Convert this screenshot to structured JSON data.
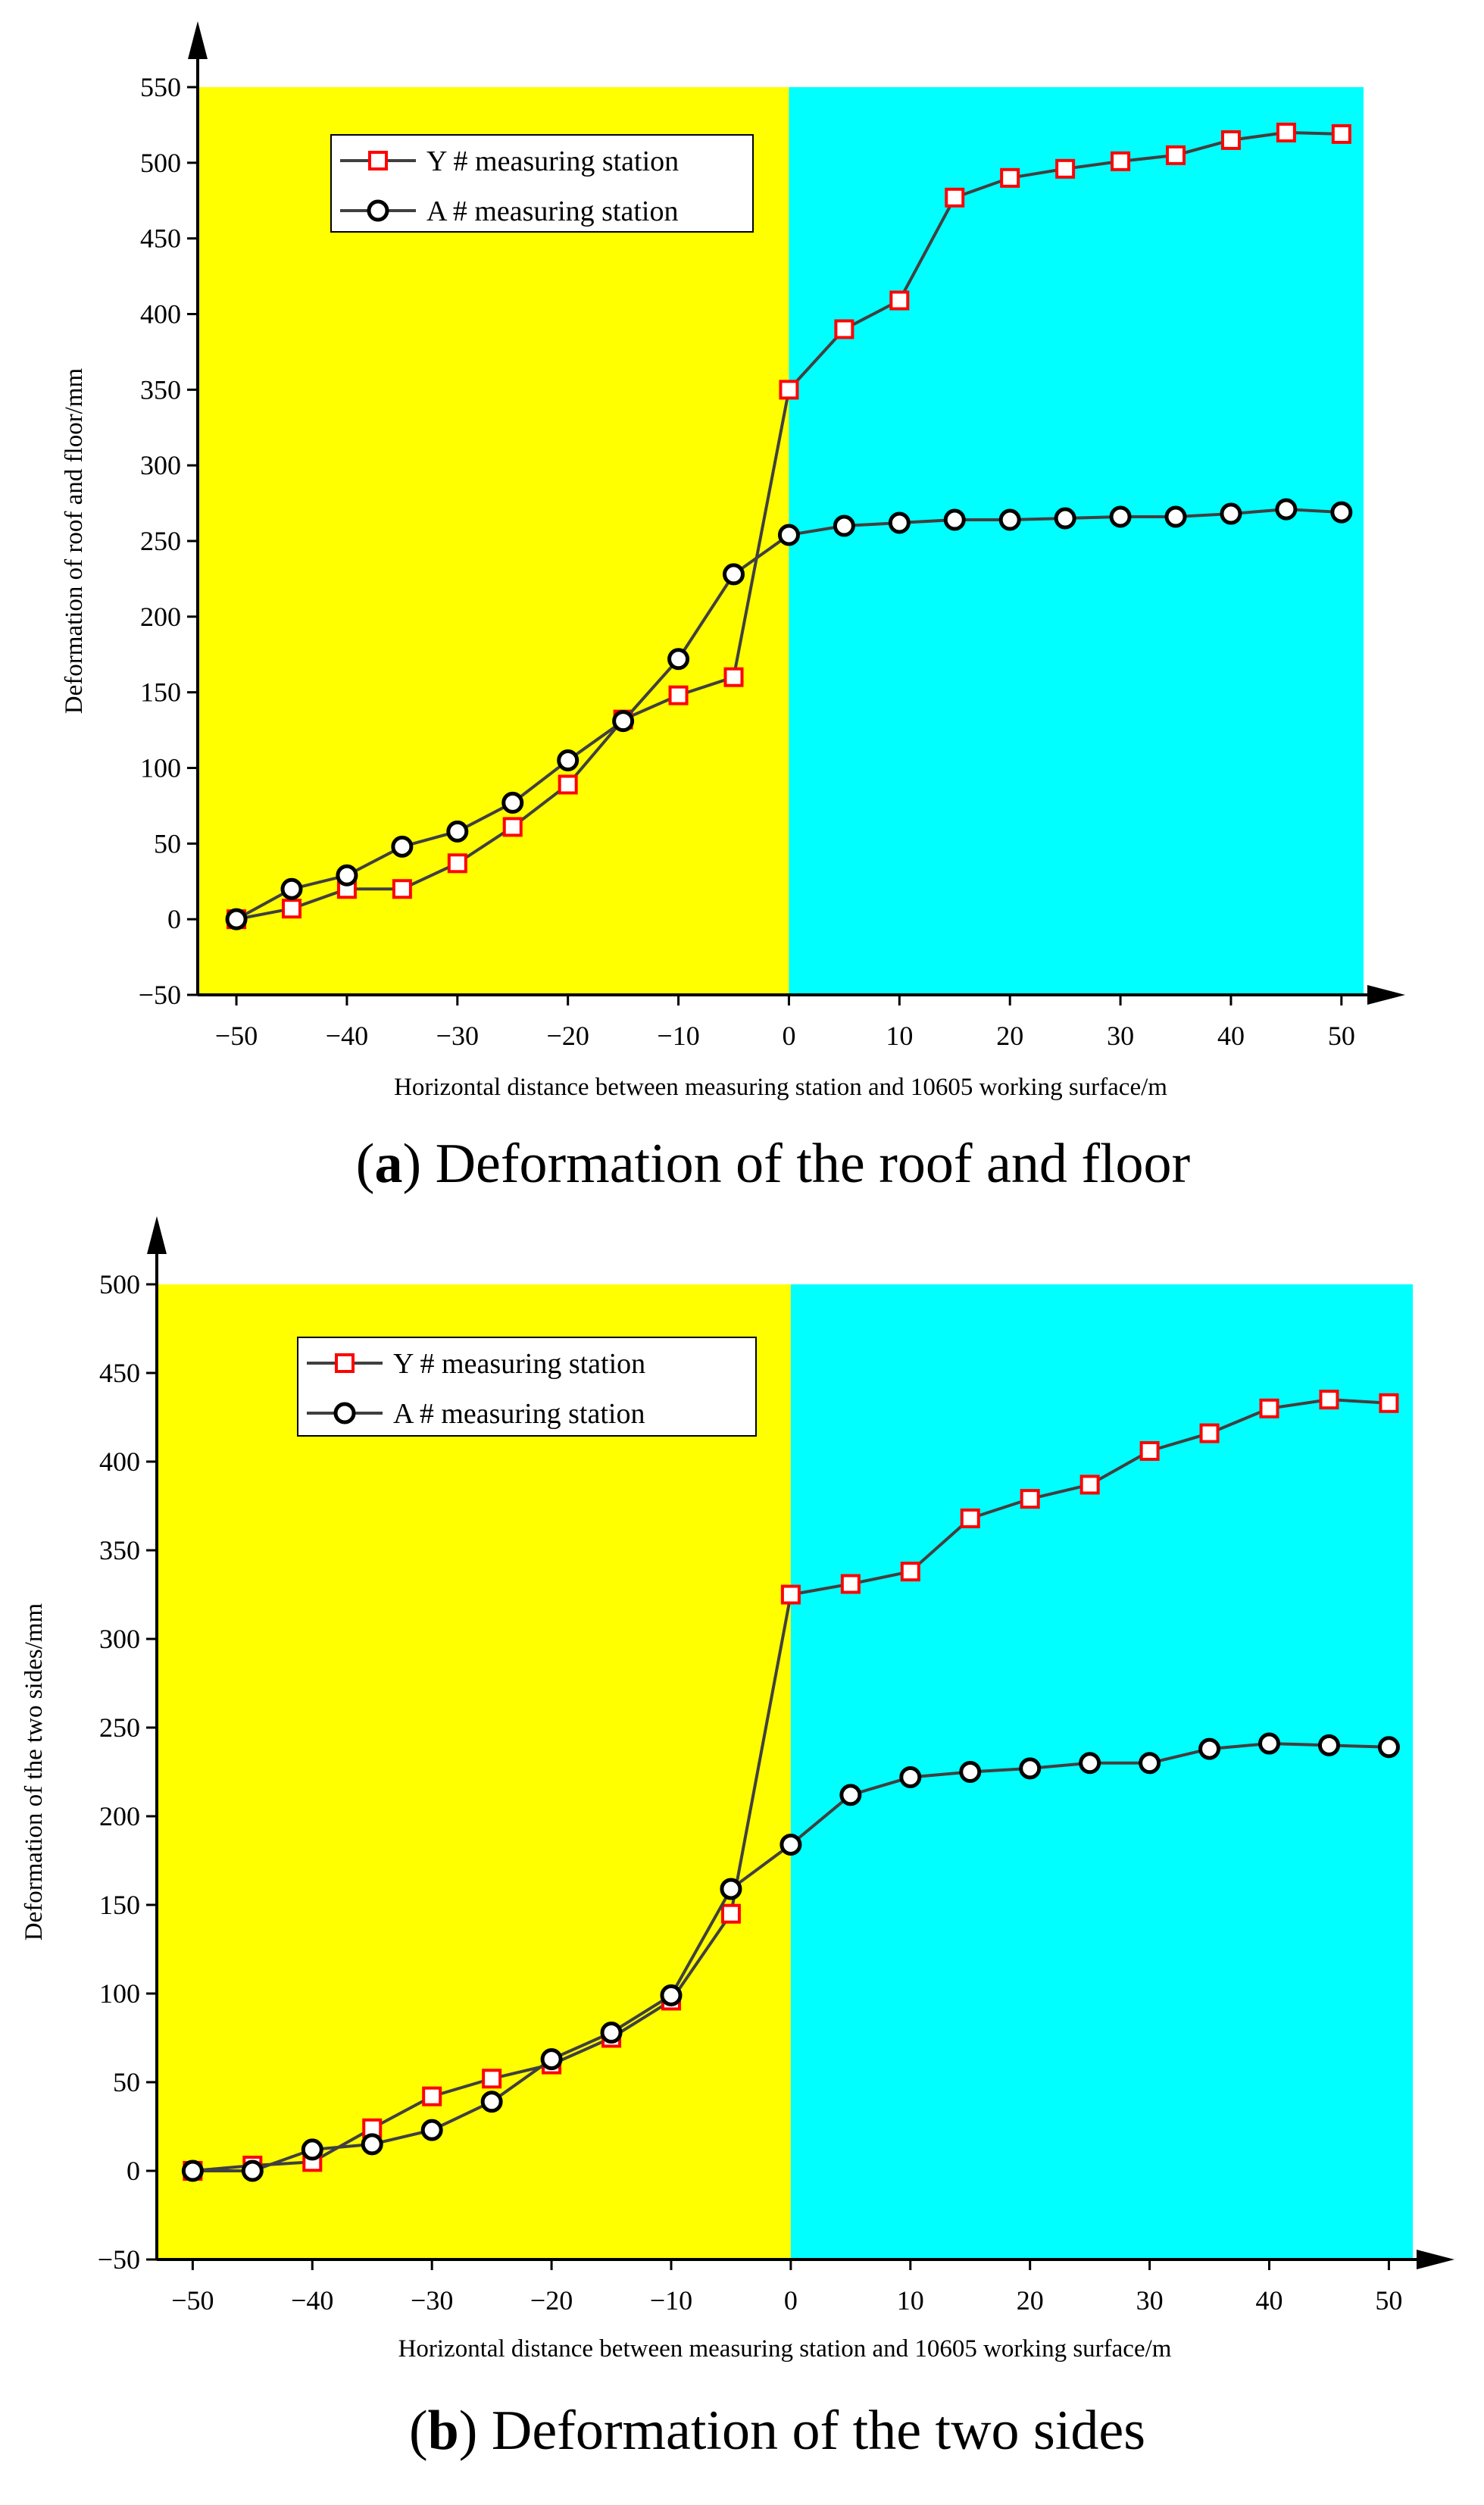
{
  "chart_data": [
    {
      "type": "line",
      "caption_label": "a",
      "caption_text": ") Deformation of the roof and floor",
      "xlabel": "Horizontal distance between measuring station and 10605 working surface/m",
      "ylabel": "Deformation of roof and floor/mm",
      "xlim": [
        -53.5,
        52
      ],
      "ylim": [
        -50,
        550
      ],
      "xticks": [
        -50,
        -40,
        -30,
        -20,
        -10,
        0,
        10,
        20,
        30,
        40,
        50
      ],
      "xtick_labels": [
        "−50",
        "−40",
        "−30",
        "−20",
        "−10",
        "0",
        "10",
        "20",
        "30",
        "40",
        "50"
      ],
      "yticks": [
        -50,
        0,
        50,
        100,
        150,
        200,
        250,
        300,
        350,
        400,
        450,
        500,
        550
      ],
      "ytick_labels": [
        "−50",
        "0",
        "50",
        "100",
        "150",
        "200",
        "250",
        "300",
        "350",
        "400",
        "450",
        "500",
        "550"
      ],
      "regions": [
        {
          "from": -53.5,
          "to": 0,
          "color": "#ffff00"
        },
        {
          "from": 0,
          "to": 52,
          "color": "#00ffff"
        }
      ],
      "legend_position": "top-left",
      "series": [
        {
          "name": "Y # measuring station",
          "marker": "square",
          "marker_color": "#ff0000",
          "x": [
            -50,
            -45,
            -40,
            -35,
            -30,
            -25,
            -20,
            -15,
            -10,
            -5,
            0,
            5,
            10,
            15,
            20,
            25,
            30,
            35,
            40,
            45,
            50
          ],
          "values": [
            0,
            7,
            20,
            20,
            37,
            61,
            89,
            132,
            148,
            160,
            350,
            390,
            409,
            477,
            490,
            496,
            501,
            505,
            515,
            520,
            519
          ]
        },
        {
          "name": "A # measuring station",
          "marker": "circle",
          "marker_color": "#000000",
          "x": [
            -50,
            -45,
            -40,
            -35,
            -30,
            -25,
            -20,
            -15,
            -10,
            -5,
            0,
            5,
            10,
            15,
            20,
            25,
            30,
            35,
            40,
            45,
            50
          ],
          "values": [
            0,
            20,
            29,
            48,
            58,
            77,
            105,
            131,
            172,
            228,
            254,
            260,
            262,
            264,
            264,
            265,
            266,
            266,
            268,
            271,
            269
          ]
        }
      ]
    },
    {
      "type": "line",
      "caption_label": "b",
      "caption_text": ") Deformation of the two sides",
      "xlabel": "Horizontal distance between measuring station and 10605 working surface/m",
      "ylabel": "Deformation of the two sides/mm",
      "xlim": [
        -53,
        52
      ],
      "ylim": [
        -50,
        500
      ],
      "xticks": [
        -50,
        -40,
        -30,
        -20,
        -10,
        0,
        10,
        20,
        30,
        40,
        50
      ],
      "xtick_labels": [
        "−50",
        "−40",
        "−30",
        "−20",
        "−10",
        "0",
        "10",
        "20",
        "30",
        "40",
        "50"
      ],
      "yticks": [
        -50,
        0,
        50,
        100,
        150,
        200,
        250,
        300,
        350,
        400,
        450,
        500
      ],
      "ytick_labels": [
        "−50",
        "0",
        "50",
        "100",
        "150",
        "200",
        "250",
        "300",
        "350",
        "400",
        "450",
        "500"
      ],
      "regions": [
        {
          "from": -53,
          "to": 0,
          "color": "#ffff00"
        },
        {
          "from": 0,
          "to": 52,
          "color": "#00ffff"
        }
      ],
      "legend_position": "top-left",
      "series": [
        {
          "name": "Y # measuring station",
          "marker": "square",
          "marker_color": "#ff0000",
          "x": [
            -50,
            -45,
            -40,
            -35,
            -30,
            -25,
            -20,
            -15,
            -10,
            -5,
            0,
            5,
            10,
            15,
            20,
            25,
            30,
            35,
            40,
            45,
            50
          ],
          "values": [
            0,
            3,
            5,
            24,
            42,
            52,
            60,
            75,
            96,
            145,
            325,
            331,
            338,
            368,
            379,
            387,
            406,
            416,
            430,
            435,
            433
          ]
        },
        {
          "name": "A # measuring station",
          "marker": "circle",
          "marker_color": "#000000",
          "x": [
            -50,
            -45,
            -40,
            -35,
            -30,
            -25,
            -20,
            -15,
            -10,
            -5,
            0,
            5,
            10,
            15,
            20,
            25,
            30,
            35,
            40,
            45,
            50
          ],
          "values": [
            0,
            0,
            12,
            15,
            23,
            39,
            63,
            78,
            99,
            159,
            184,
            212,
            222,
            225,
            227,
            230,
            230,
            238,
            241,
            240,
            239
          ]
        }
      ]
    }
  ]
}
